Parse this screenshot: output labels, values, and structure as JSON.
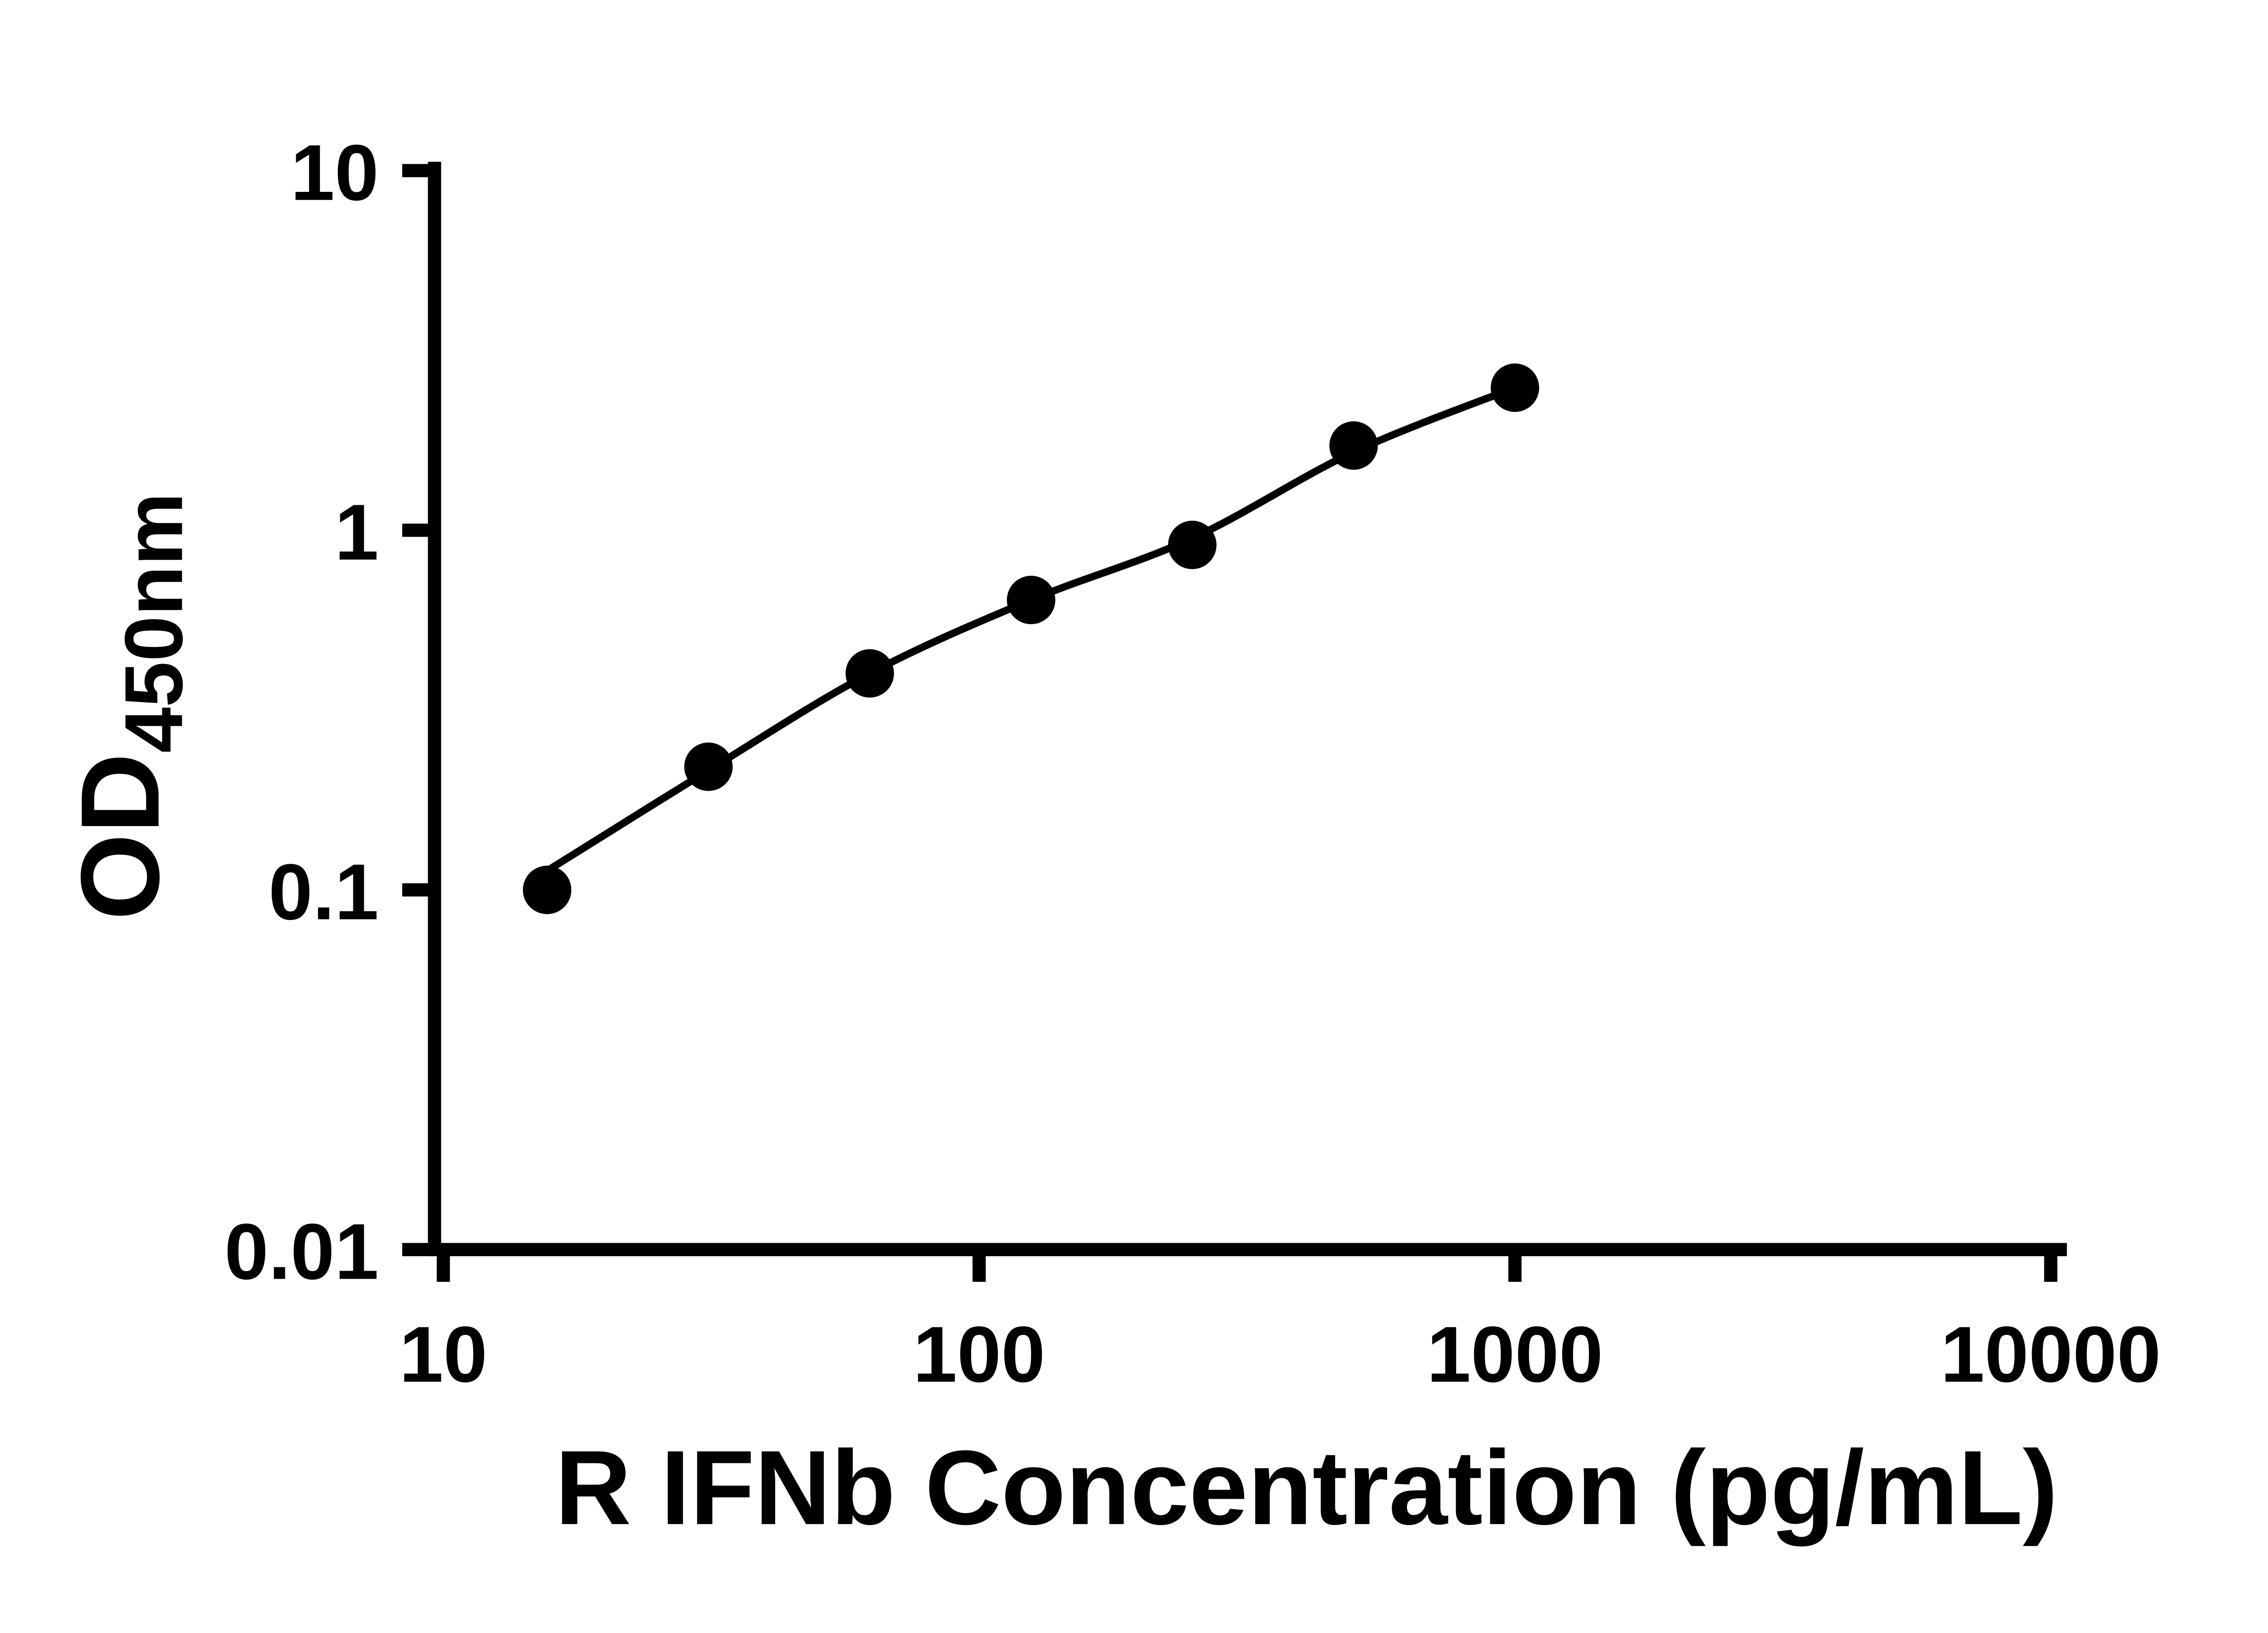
{
  "figure": {
    "background_color": "#ffffff",
    "axis_color": "#000000",
    "marker_color": "#000000",
    "line_color": "#000000"
  },
  "chart_data": {
    "type": "scatter",
    "title": "",
    "xlabel": "R IFNb Concentration (pg/mL)",
    "ylabel": "OD450nm",
    "ylabel_main": "OD",
    "ylabel_sub": "450nm",
    "x_scale": "log10",
    "y_scale": "log10",
    "xlim": [
      10,
      10000
    ],
    "ylim": [
      0.01,
      10
    ],
    "grid": "off",
    "legend": "none",
    "x_tick_values": [
      10,
      100,
      1000,
      10000
    ],
    "x_tick_labels": [
      "10",
      "100",
      "1000",
      "10000"
    ],
    "y_tick_values": [
      10,
      1,
      0.1,
      0.01
    ],
    "y_tick_labels": [
      "10",
      "1",
      "0.1",
      "0.01"
    ],
    "series": [
      {
        "name": "standard-points",
        "type": "scatter",
        "marker": "filled-circle",
        "color": "#000000",
        "x": [
          15.625,
          31.25,
          62.5,
          125,
          250,
          500,
          1000
        ],
        "y": [
          0.1,
          0.22,
          0.4,
          0.64,
          0.91,
          1.72,
          2.49
        ]
      },
      {
        "name": "fit-line",
        "type": "line",
        "color": "#000000",
        "x": [
          15.625,
          31.25,
          62.5,
          125,
          250,
          500,
          1000
        ],
        "y": [
          0.113,
          0.215,
          0.4,
          0.64,
          0.95,
          1.65,
          2.49
        ]
      }
    ]
  }
}
